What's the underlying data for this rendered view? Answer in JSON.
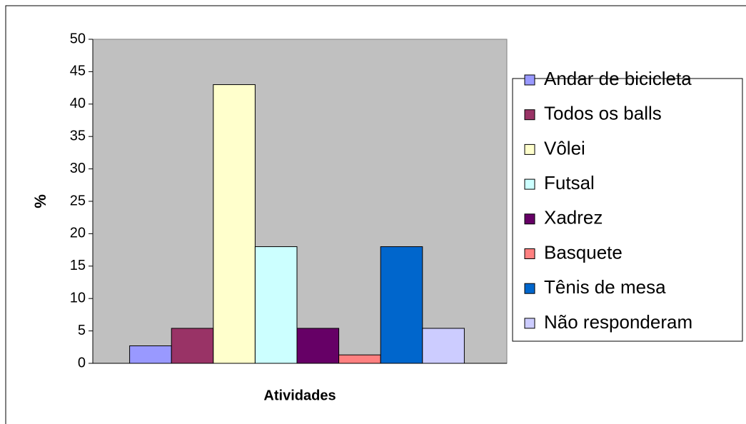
{
  "chart_data": {
    "type": "bar",
    "xlabel": "Atividades",
    "ylabel": "%",
    "categories": [
      null
    ],
    "series": [
      {
        "name": "Andar de bicicleta",
        "color": "#9999ff",
        "values": [
          2.7
        ]
      },
      {
        "name": "Todos os balls",
        "color": "#993366",
        "values": [
          5.4
        ]
      },
      {
        "name": "Vôlei",
        "color": "#ffffcc",
        "values": [
          43
        ]
      },
      {
        "name": "Futsal",
        "color": "#ccffff",
        "values": [
          18
        ]
      },
      {
        "name": "Xadrez",
        "color": "#660066",
        "values": [
          5.4
        ]
      },
      {
        "name": "Basquete",
        "color": "#ff8080",
        "values": [
          1.3
        ]
      },
      {
        "name": "Tênis de mesa",
        "color": "#0066cc",
        "values": [
          18
        ]
      },
      {
        "name": "Não responderam",
        "color": "#ccccff",
        "values": [
          5.4
        ]
      }
    ],
    "ylim": [
      0,
      50
    ],
    "yticks": [
      0,
      5,
      10,
      15,
      20,
      25,
      30,
      35,
      40,
      45,
      50
    ],
    "grid": false,
    "legend": "right",
    "plot_background": "#c0c0c0"
  }
}
